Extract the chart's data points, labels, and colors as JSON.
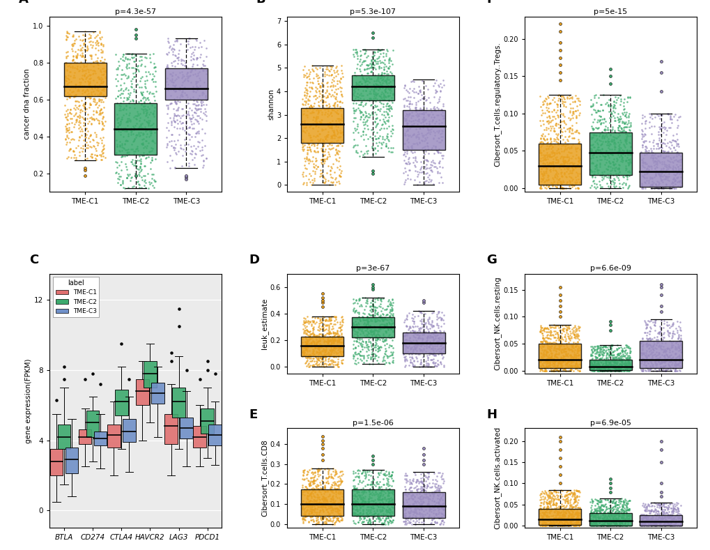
{
  "colors": {
    "C1": "#E8A020",
    "C2": "#3DAA6E",
    "C3": "#9B8DC0"
  },
  "panel_A": {
    "title": "p=4.3e-57",
    "ylabel": "cancer dna fraction",
    "xlabel_ticks": [
      "TME-C1",
      "TME-C2",
      "TME-C3"
    ],
    "ylim": [
      0.1,
      1.05
    ],
    "yticks": [
      0.2,
      0.4,
      0.6,
      0.8,
      1.0
    ],
    "boxes": [
      {
        "median": 0.67,
        "q1": 0.62,
        "q3": 0.8,
        "whislo": 0.27,
        "whishi": 0.97,
        "fliers_low": [
          0.19,
          0.22,
          0.23
        ],
        "fliers_high": []
      },
      {
        "median": 0.44,
        "q1": 0.3,
        "q3": 0.58,
        "whislo": 0.12,
        "whishi": 0.85,
        "fliers_low": [
          0.19
        ],
        "fliers_high": [
          0.93,
          0.95,
          0.98
        ]
      },
      {
        "median": 0.66,
        "q1": 0.6,
        "q3": 0.77,
        "whislo": 0.23,
        "whishi": 0.93,
        "fliers_low": [
          0.17,
          0.18,
          0.19
        ],
        "fliers_high": []
      }
    ],
    "jitter_seeds": [
      42,
      43,
      44
    ],
    "jitter_counts": [
      400,
      350,
      280
    ],
    "jitter_ranges": [
      [
        0.27,
        0.97
      ],
      [
        0.12,
        0.85
      ],
      [
        0.23,
        0.93
      ]
    ]
  },
  "panel_B": {
    "title": "p=5.3e-107",
    "ylabel": "shannon",
    "xlabel_ticks": [
      "TME-C1",
      "TME-C2",
      "TME-C3"
    ],
    "ylim": [
      -0.3,
      7.2
    ],
    "yticks": [
      0,
      1,
      2,
      3,
      4,
      5,
      6,
      7
    ],
    "boxes": [
      {
        "median": 2.6,
        "q1": 1.8,
        "q3": 3.3,
        "whislo": 0.0,
        "whishi": 5.1,
        "fliers_low": [],
        "fliers_high": []
      },
      {
        "median": 4.2,
        "q1": 3.6,
        "q3": 4.7,
        "whislo": 1.2,
        "whishi": 5.8,
        "fliers_low": [
          0.5,
          0.6
        ],
        "fliers_high": [
          6.3,
          6.5
        ]
      },
      {
        "median": 2.5,
        "q1": 1.5,
        "q3": 3.2,
        "whislo": 0.0,
        "whishi": 4.5,
        "fliers_low": [],
        "fliers_high": []
      }
    ],
    "jitter_seeds": [
      52,
      53,
      54
    ],
    "jitter_counts": [
      400,
      350,
      280
    ],
    "jitter_ranges": [
      [
        0.0,
        5.1
      ],
      [
        1.2,
        5.8
      ],
      [
        0.0,
        4.5
      ]
    ]
  },
  "panel_C": {
    "ylabel": "gene expression(FPKM)",
    "xlabel_ticks": [
      "BTLA",
      "CD274",
      "CTLA4",
      "HAVCR2",
      "LAG3",
      "PDCD1"
    ],
    "ylim": [
      -1.0,
      13.5
    ],
    "yticks": [
      0,
      4,
      8,
      12
    ],
    "genes": {
      "BTLA": {
        "C1": [
          2.8,
          2.0,
          3.5
        ],
        "C2": [
          4.2,
          3.5,
          4.9
        ],
        "C3": [
          2.9,
          2.1,
          3.6
        ]
      },
      "CD274": {
        "C1": [
          4.2,
          3.8,
          4.6
        ],
        "C2": [
          5.0,
          4.2,
          5.7
        ],
        "C3": [
          4.1,
          3.7,
          4.5
        ]
      },
      "CTLA4": {
        "C1": [
          4.2,
          3.6,
          4.9
        ],
        "C2": [
          6.2,
          5.4,
          6.9
        ],
        "C3": [
          4.5,
          3.9,
          5.2
        ]
      },
      "HAVCR2": {
        "C1": [
          6.8,
          6.0,
          7.5
        ],
        "C2": [
          7.8,
          7.0,
          8.5
        ],
        "C3": [
          6.7,
          6.1,
          7.3
        ]
      },
      "LAG3": {
        "C1": [
          4.8,
          3.8,
          5.5
        ],
        "C2": [
          6.2,
          5.3,
          7.0
        ],
        "C3": [
          4.7,
          4.1,
          5.3
        ]
      },
      "PDCD1": {
        "C1": [
          4.2,
          3.6,
          4.8
        ],
        "C2": [
          5.1,
          4.4,
          5.8
        ],
        "C3": [
          4.3,
          3.7,
          4.9
        ]
      }
    }
  },
  "panel_D": {
    "title": "p=3e-67",
    "ylabel": "leuk_estimate",
    "xlabel_ticks": [
      "TME-C1",
      "TME-C2",
      "TME-C3"
    ],
    "ylim": [
      -0.05,
      0.7
    ],
    "yticks": [
      0.0,
      0.2,
      0.4,
      0.6
    ],
    "boxes": [
      {
        "median": 0.155,
        "q1": 0.08,
        "q3": 0.225,
        "whislo": 0.0,
        "whishi": 0.38,
        "fliers_low": [],
        "fliers_high": [
          0.45,
          0.48,
          0.5,
          0.52,
          0.55
        ]
      },
      {
        "median": 0.3,
        "q1": 0.22,
        "q3": 0.375,
        "whislo": 0.02,
        "whishi": 0.52,
        "fliers_low": [],
        "fliers_high": [
          0.58,
          0.6,
          0.62
        ]
      },
      {
        "median": 0.18,
        "q1": 0.1,
        "q3": 0.255,
        "whislo": 0.0,
        "whishi": 0.42,
        "fliers_low": [],
        "fliers_high": [
          0.48,
          0.5
        ]
      }
    ],
    "jitter_seeds": [
      62,
      63,
      64
    ],
    "jitter_counts": [
      400,
      350,
      280
    ],
    "jitter_ranges": [
      [
        0.0,
        0.38
      ],
      [
        0.02,
        0.52
      ],
      [
        0.0,
        0.42
      ]
    ]
  },
  "panel_E": {
    "title": "p=1.5e-06",
    "ylabel": "Cibersort_T.cells.CD8",
    "xlabel_ticks": [
      "TME-C1",
      "TME-C2",
      "TME-C3"
    ],
    "ylim": [
      -0.02,
      0.48
    ],
    "yticks": [
      0.0,
      0.1,
      0.2,
      0.3,
      0.4
    ],
    "boxes": [
      {
        "median": 0.1,
        "q1": 0.04,
        "q3": 0.175,
        "whislo": 0.0,
        "whishi": 0.28,
        "fliers_low": [],
        "fliers_high": [
          0.32,
          0.35,
          0.38,
          0.4,
          0.42,
          0.44
        ]
      },
      {
        "median": 0.1,
        "q1": 0.04,
        "q3": 0.175,
        "whislo": 0.0,
        "whishi": 0.27,
        "fliers_low": [],
        "fliers_high": [
          0.3,
          0.32,
          0.34
        ]
      },
      {
        "median": 0.09,
        "q1": 0.03,
        "q3": 0.16,
        "whislo": 0.0,
        "whishi": 0.26,
        "fliers_low": [],
        "fliers_high": [
          0.3,
          0.32,
          0.35,
          0.38
        ]
      }
    ],
    "jitter_seeds": [
      72,
      73,
      74
    ],
    "jitter_counts": [
      400,
      350,
      280
    ],
    "jitter_ranges": [
      [
        0.0,
        0.28
      ],
      [
        0.0,
        0.27
      ],
      [
        0.0,
        0.26
      ]
    ]
  },
  "panel_F": {
    "title": "p=5e-15",
    "ylabel": "Cibersort_T.cells.regulatory..Tregs.",
    "xlabel_ticks": [
      "TME-C1",
      "TME-C2",
      "TME-C3"
    ],
    "ylim": [
      -0.005,
      0.23
    ],
    "yticks": [
      0.0,
      0.05,
      0.1,
      0.15,
      0.2
    ],
    "boxes": [
      {
        "median": 0.03,
        "q1": 0.005,
        "q3": 0.06,
        "whislo": 0.0,
        "whishi": 0.125,
        "fliers_low": [],
        "fliers_high": [
          0.145,
          0.155,
          0.165,
          0.175,
          0.185,
          0.195,
          0.21,
          0.22
        ]
      },
      {
        "median": 0.048,
        "q1": 0.018,
        "q3": 0.075,
        "whislo": 0.0,
        "whishi": 0.125,
        "fliers_low": [],
        "fliers_high": [
          0.14,
          0.15,
          0.16
        ]
      },
      {
        "median": 0.022,
        "q1": 0.002,
        "q3": 0.048,
        "whislo": 0.0,
        "whishi": 0.1,
        "fliers_low": [],
        "fliers_high": [
          0.13,
          0.155,
          0.17
        ]
      }
    ],
    "jitter_seeds": [
      82,
      83,
      84
    ],
    "jitter_counts": [
      400,
      350,
      280
    ],
    "jitter_ranges": [
      [
        0.0,
        0.125
      ],
      [
        0.0,
        0.125
      ],
      [
        0.0,
        0.1
      ]
    ]
  },
  "panel_G": {
    "title": "p=6.6e-09",
    "ylabel": "Cibersort_NK.cells.resting",
    "xlabel_ticks": [
      "TME-C1",
      "TME-C2",
      "TME-C3"
    ],
    "ylim": [
      -0.005,
      0.18
    ],
    "yticks": [
      0.0,
      0.05,
      0.1,
      0.15
    ],
    "boxes": [
      {
        "median": 0.02,
        "q1": 0.005,
        "q3": 0.05,
        "whislo": 0.0,
        "whishi": 0.085,
        "fliers_low": [],
        "fliers_high": [
          0.1,
          0.11,
          0.12,
          0.13,
          0.14,
          0.155
        ]
      },
      {
        "median": 0.008,
        "q1": 0.001,
        "q3": 0.02,
        "whislo": 0.0,
        "whishi": 0.048,
        "fliers_low": [],
        "fliers_high": [
          0.075,
          0.085,
          0.092
        ]
      },
      {
        "median": 0.02,
        "q1": 0.005,
        "q3": 0.055,
        "whislo": 0.0,
        "whishi": 0.095,
        "fliers_low": [],
        "fliers_high": [
          0.11,
          0.12,
          0.14,
          0.155,
          0.16
        ]
      }
    ],
    "jitter_seeds": [
      92,
      93,
      94
    ],
    "jitter_counts": [
      400,
      350,
      280
    ],
    "jitter_ranges": [
      [
        0.0,
        0.085
      ],
      [
        0.0,
        0.048
      ],
      [
        0.0,
        0.095
      ]
    ]
  },
  "panel_H": {
    "title": "p=6.9e-05",
    "ylabel": "Cibersort_NK.cells.activated",
    "xlabel_ticks": [
      "TME-C1",
      "TME-C2",
      "TME-C3"
    ],
    "ylim": [
      -0.005,
      0.23
    ],
    "yticks": [
      0.0,
      0.05,
      0.1,
      0.15,
      0.2
    ],
    "boxes": [
      {
        "median": 0.015,
        "q1": 0.002,
        "q3": 0.04,
        "whislo": 0.0,
        "whishi": 0.085,
        "fliers_low": [],
        "fliers_high": [
          0.1,
          0.12,
          0.14,
          0.16,
          0.18,
          0.2,
          0.21
        ]
      },
      {
        "median": 0.012,
        "q1": 0.001,
        "q3": 0.03,
        "whislo": 0.0,
        "whishi": 0.065,
        "fliers_low": [],
        "fliers_high": [
          0.08,
          0.09,
          0.1,
          0.11
        ]
      },
      {
        "median": 0.01,
        "q1": 0.001,
        "q3": 0.025,
        "whislo": 0.0,
        "whishi": 0.055,
        "fliers_low": [],
        "fliers_high": [
          0.07,
          0.08,
          0.1,
          0.15,
          0.18,
          0.2
        ]
      }
    ],
    "jitter_seeds": [
      102,
      103,
      104
    ],
    "jitter_counts": [
      400,
      350,
      280
    ],
    "jitter_ranges": [
      [
        0.0,
        0.085
      ],
      [
        0.0,
        0.065
      ],
      [
        0.0,
        0.055
      ]
    ]
  }
}
